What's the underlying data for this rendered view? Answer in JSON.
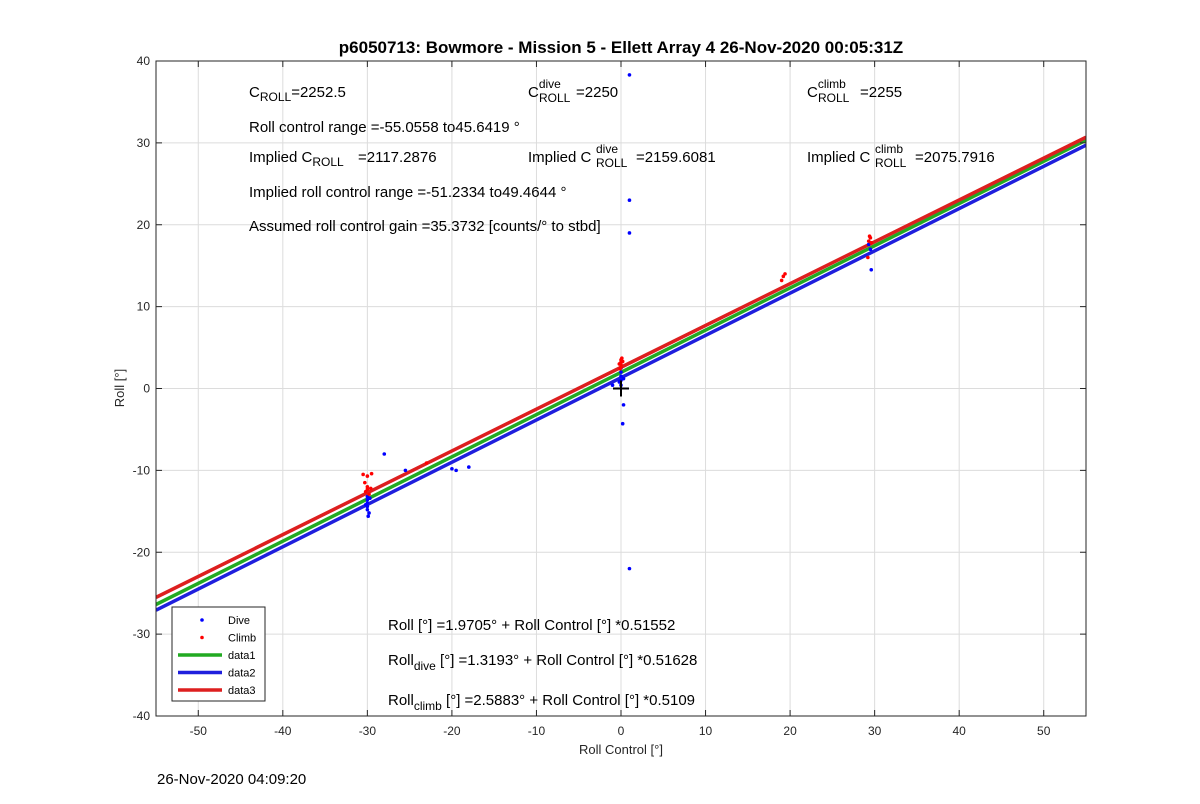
{
  "chart_data": {
    "type": "scatter",
    "title": "p6050713: Bowmore - Mission 5 - Ellett Array 4 26-Nov-2020 00:05:31Z",
    "xlabel": "Roll Control [°]",
    "ylabel": "Roll [°]",
    "xlim": [
      -55,
      55
    ],
    "ylim": [
      -40,
      40
    ],
    "xticks": [
      -50,
      -40,
      -30,
      -20,
      -10,
      0,
      10,
      20,
      30,
      40,
      50
    ],
    "yticks": [
      -40,
      -30,
      -20,
      -10,
      0,
      10,
      20,
      30,
      40
    ],
    "grid": true,
    "legend_position": "bottom-left",
    "colors": {
      "dive": "#0000ff",
      "climb": "#ff0000",
      "data1": "#22aa22",
      "data2": "#1f1fdd",
      "data3": "#dd1f1f",
      "marker": "#000000"
    },
    "legend": [
      {
        "label": "Dive",
        "kind": "dot",
        "color": "#0000ff"
      },
      {
        "label": "Climb",
        "kind": "dot",
        "color": "#ff0000"
      },
      {
        "label": "data1",
        "kind": "line",
        "color": "#22aa22"
      },
      {
        "label": "data2",
        "kind": "line",
        "color": "#1f1fdd"
      },
      {
        "label": "data3",
        "kind": "line",
        "color": "#dd1f1f"
      }
    ],
    "lines": [
      {
        "name": "data1",
        "intercept": 1.9705,
        "slope": 0.51552,
        "color": "#22aa22"
      },
      {
        "name": "data2",
        "intercept": 1.3193,
        "slope": 0.51628,
        "color": "#1f1fdd"
      },
      {
        "name": "data3",
        "intercept": 2.5883,
        "slope": 0.5109,
        "color": "#dd1f1f"
      }
    ],
    "series": [
      {
        "name": "Dive",
        "color": "#0000ff",
        "points": [
          [
            -30,
            -13.2
          ],
          [
            -30,
            -13.6
          ],
          [
            -30,
            -14.0
          ],
          [
            -30,
            -14.4
          ],
          [
            -30,
            -14.8
          ],
          [
            -29.8,
            -15.2
          ],
          [
            -29.9,
            -15.6
          ],
          [
            -30.2,
            -14.2
          ],
          [
            -29.7,
            -13.4
          ],
          [
            -28,
            -8
          ],
          [
            -25.5,
            -10
          ],
          [
            -20,
            -9.8
          ],
          [
            -19.5,
            -10
          ],
          [
            -18,
            -9.6
          ],
          [
            0,
            0.4
          ],
          [
            0,
            1.0
          ],
          [
            0,
            1.5
          ],
          [
            0,
            2.0
          ],
          [
            0,
            2.5
          ],
          [
            -0.2,
            0.8
          ],
          [
            0.3,
            1.2
          ],
          [
            -1,
            0.4
          ],
          [
            0.3,
            -2
          ],
          [
            0.2,
            -4.3
          ],
          [
            1,
            19
          ],
          [
            1,
            23
          ],
          [
            1,
            38.3
          ],
          [
            1,
            -22
          ],
          [
            29.5,
            17
          ],
          [
            29.6,
            14.5
          ],
          [
            29.3,
            17.6
          ]
        ]
      },
      {
        "name": "Climb",
        "color": "#ff0000",
        "points": [
          [
            -30.5,
            -10.5
          ],
          [
            -30,
            -10.7
          ],
          [
            -29.5,
            -10.4
          ],
          [
            -30.3,
            -11.5
          ],
          [
            -30,
            -12
          ],
          [
            -30,
            -12.3
          ],
          [
            -30.2,
            -12.6
          ],
          [
            -29.8,
            -12.9
          ],
          [
            -29.6,
            -12.2
          ],
          [
            -23,
            -9.1
          ],
          [
            0,
            2.6
          ],
          [
            0,
            2.9
          ],
          [
            0,
            3.2
          ],
          [
            0,
            3.5
          ],
          [
            -0.2,
            3.0
          ],
          [
            0.2,
            3.3
          ],
          [
            -0.1,
            2.4
          ],
          [
            0.1,
            3.7
          ],
          [
            19,
            13.2
          ],
          [
            19.2,
            13.7
          ],
          [
            19.4,
            14.0
          ],
          [
            29.3,
            18.0
          ],
          [
            29.5,
            18.4
          ],
          [
            29.6,
            17.8
          ],
          [
            29.4,
            18.6
          ],
          [
            29.2,
            16
          ]
        ]
      }
    ],
    "crosshair": [
      0,
      0
    ]
  },
  "annotations": {
    "c_roll": {
      "main": "C",
      "sub": "ROLL",
      "sup": "",
      "rest": "=2252.5"
    },
    "c_roll_dive": {
      "main": "C",
      "sub": "ROLL",
      "sup": "dive",
      "rest": "=2250"
    },
    "c_roll_climb": {
      "main": "C",
      "sub": "ROLL",
      "sup": "climb",
      "rest": "=2255"
    },
    "range": "Roll control range =-55.0558 to45.6419 °",
    "implied": {
      "prefix": "Implied ",
      "main": "C",
      "sub": "ROLL",
      "sup": "",
      "rest": "=2117.2876"
    },
    "implied_dive": {
      "prefix": "Implied ",
      "main": "C",
      "sub": "ROLL",
      "sup": "dive",
      "rest": "=2159.6081"
    },
    "implied_climb": {
      "prefix": "Implied ",
      "main": "C",
      "sub": "ROLL",
      "sup": "climb",
      "rest": "=2075.7916"
    },
    "implied_range": "Implied roll control range =-51.2334 to49.4644 °",
    "gain": "Assumed roll control gain =35.3732 [counts/° to stbd]",
    "fit_all": {
      "main": "Roll",
      "sub": "",
      "rest": " [°] =1.9705° + Roll Control [°] *0.51552"
    },
    "fit_dive": {
      "main": "Roll",
      "sub": "dive",
      "rest": " [°] =1.3193° + Roll Control [°] *0.51628"
    },
    "fit_climb": {
      "main": "Roll",
      "sub": "climb",
      "rest": " [°] =2.5883° + Roll Control [°] *0.5109"
    }
  },
  "footer": "26-Nov-2020 04:09:20"
}
